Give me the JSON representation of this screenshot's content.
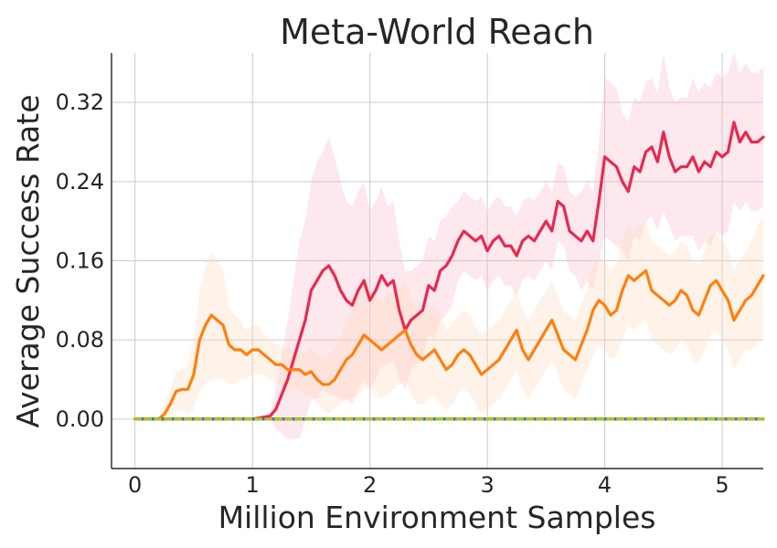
{
  "chart_data": {
    "type": "line",
    "title": "Meta-World Reach",
    "xlabel": "Million Environment Samples",
    "ylabel": "Average Success Rate",
    "xlim": [
      -0.2,
      5.35
    ],
    "ylim": [
      -0.05,
      0.37
    ],
    "xticks": [
      0,
      1,
      2,
      3,
      4,
      5
    ],
    "xtick_labels": [
      "0",
      "1",
      "2",
      "3",
      "4",
      "5"
    ],
    "yticks": [
      0.0,
      0.08,
      0.16,
      0.24,
      0.32
    ],
    "ytick_labels": [
      "0.00",
      "0.08",
      "0.16",
      "0.24",
      "0.32"
    ],
    "grid": true,
    "legend": "none",
    "series": [
      {
        "color": "#e8294f",
        "band_color": "#f7b3c3",
        "x": [
          0,
          1.0,
          1.1,
          1.15,
          1.2,
          1.25,
          1.3,
          1.35,
          1.4,
          1.45,
          1.5,
          1.55,
          1.6,
          1.65,
          1.7,
          1.75,
          1.8,
          1.85,
          1.9,
          1.95,
          2.0,
          2.05,
          2.1,
          2.15,
          2.2,
          2.25,
          2.3,
          2.35,
          2.4,
          2.45,
          2.5,
          2.55,
          2.6,
          2.65,
          2.7,
          2.75,
          2.8,
          2.85,
          2.9,
          2.95,
          3.0,
          3.05,
          3.1,
          3.15,
          3.2,
          3.25,
          3.3,
          3.35,
          3.4,
          3.45,
          3.5,
          3.55,
          3.6,
          3.65,
          3.7,
          3.75,
          3.8,
          3.85,
          3.9,
          3.95,
          4.0,
          4.05,
          4.1,
          4.15,
          4.2,
          4.25,
          4.3,
          4.35,
          4.4,
          4.45,
          4.5,
          4.55,
          4.6,
          4.65,
          4.7,
          4.75,
          4.8,
          4.85,
          4.9,
          4.95,
          5.0,
          5.05,
          5.1,
          5.15,
          5.2,
          5.25,
          5.3,
          5.35
        ],
        "y": [
          0.0,
          0.0,
          0.002,
          0.003,
          0.01,
          0.025,
          0.04,
          0.06,
          0.08,
          0.1,
          0.13,
          0.14,
          0.15,
          0.155,
          0.145,
          0.13,
          0.12,
          0.115,
          0.13,
          0.14,
          0.12,
          0.13,
          0.145,
          0.135,
          0.14,
          0.11,
          0.09,
          0.1,
          0.105,
          0.11,
          0.135,
          0.13,
          0.15,
          0.155,
          0.165,
          0.18,
          0.19,
          0.185,
          0.18,
          0.185,
          0.17,
          0.18,
          0.185,
          0.175,
          0.175,
          0.165,
          0.18,
          0.185,
          0.18,
          0.19,
          0.2,
          0.19,
          0.22,
          0.215,
          0.19,
          0.185,
          0.18,
          0.19,
          0.18,
          0.22,
          0.265,
          0.26,
          0.255,
          0.24,
          0.23,
          0.255,
          0.25,
          0.27,
          0.275,
          0.26,
          0.29,
          0.265,
          0.25,
          0.255,
          0.255,
          0.265,
          0.25,
          0.26,
          0.255,
          0.27,
          0.265,
          0.27,
          0.3,
          0.28,
          0.29,
          0.28,
          0.28,
          0.285
        ],
        "band_halfwidth": [
          0.0,
          0.0,
          0.002,
          0.004,
          0.02,
          0.04,
          0.06,
          0.08,
          0.1,
          0.1,
          0.11,
          0.12,
          0.12,
          0.13,
          0.12,
          0.11,
          0.1,
          0.1,
          0.1,
          0.1,
          0.09,
          0.09,
          0.09,
          0.08,
          0.08,
          0.07,
          0.06,
          0.05,
          0.05,
          0.05,
          0.05,
          0.05,
          0.05,
          0.05,
          0.05,
          0.04,
          0.04,
          0.04,
          0.04,
          0.04,
          0.04,
          0.04,
          0.04,
          0.04,
          0.04,
          0.04,
          0.04,
          0.04,
          0.04,
          0.04,
          0.04,
          0.04,
          0.04,
          0.04,
          0.04,
          0.04,
          0.05,
          0.05,
          0.05,
          0.06,
          0.08,
          0.08,
          0.08,
          0.07,
          0.07,
          0.07,
          0.07,
          0.07,
          0.07,
          0.07,
          0.08,
          0.07,
          0.07,
          0.07,
          0.07,
          0.08,
          0.08,
          0.08,
          0.08,
          0.08,
          0.08,
          0.08,
          0.08,
          0.07,
          0.07,
          0.07,
          0.07,
          0.07
        ]
      },
      {
        "color": "#ff7f0e",
        "band_color": "#ffd8b5",
        "x": [
          0,
          0.2,
          0.25,
          0.3,
          0.35,
          0.4,
          0.45,
          0.5,
          0.55,
          0.6,
          0.65,
          0.7,
          0.75,
          0.8,
          0.85,
          0.9,
          0.95,
          1.0,
          1.05,
          1.1,
          1.15,
          1.2,
          1.25,
          1.3,
          1.35,
          1.4,
          1.45,
          1.5,
          1.55,
          1.6,
          1.65,
          1.7,
          1.75,
          1.8,
          1.85,
          1.9,
          1.95,
          2.0,
          2.05,
          2.1,
          2.15,
          2.2,
          2.25,
          2.3,
          2.35,
          2.4,
          2.45,
          2.5,
          2.55,
          2.6,
          2.65,
          2.7,
          2.75,
          2.8,
          2.85,
          2.9,
          2.95,
          3.0,
          3.05,
          3.1,
          3.15,
          3.2,
          3.25,
          3.3,
          3.35,
          3.4,
          3.45,
          3.5,
          3.55,
          3.6,
          3.65,
          3.7,
          3.75,
          3.8,
          3.85,
          3.9,
          3.95,
          4.0,
          4.05,
          4.1,
          4.15,
          4.2,
          4.25,
          4.3,
          4.35,
          4.4,
          4.45,
          4.5,
          4.55,
          4.6,
          4.65,
          4.7,
          4.75,
          4.8,
          4.85,
          4.9,
          4.95,
          5.0,
          5.05,
          5.1,
          5.15,
          5.2,
          5.25,
          5.3,
          5.35
        ],
        "y": [
          0.0,
          0.0,
          0.005,
          0.015,
          0.028,
          0.03,
          0.03,
          0.045,
          0.08,
          0.095,
          0.105,
          0.1,
          0.095,
          0.075,
          0.07,
          0.07,
          0.065,
          0.07,
          0.07,
          0.065,
          0.06,
          0.055,
          0.055,
          0.05,
          0.05,
          0.05,
          0.045,
          0.048,
          0.04,
          0.035,
          0.035,
          0.04,
          0.05,
          0.06,
          0.065,
          0.075,
          0.085,
          0.08,
          0.075,
          0.07,
          0.075,
          0.08,
          0.085,
          0.09,
          0.075,
          0.065,
          0.06,
          0.065,
          0.07,
          0.06,
          0.05,
          0.055,
          0.065,
          0.07,
          0.065,
          0.055,
          0.045,
          0.05,
          0.055,
          0.06,
          0.07,
          0.08,
          0.09,
          0.07,
          0.06,
          0.07,
          0.08,
          0.09,
          0.1,
          0.085,
          0.07,
          0.065,
          0.06,
          0.075,
          0.09,
          0.11,
          0.12,
          0.115,
          0.105,
          0.11,
          0.13,
          0.145,
          0.14,
          0.145,
          0.15,
          0.13,
          0.125,
          0.12,
          0.115,
          0.12,
          0.13,
          0.125,
          0.11,
          0.105,
          0.12,
          0.135,
          0.14,
          0.13,
          0.12,
          0.1,
          0.11,
          0.12,
          0.125,
          0.135,
          0.145
        ],
        "band_halfwidth": [
          0.0,
          0.0,
          0.01,
          0.015,
          0.02,
          0.02,
          0.025,
          0.035,
          0.05,
          0.06,
          0.065,
          0.06,
          0.055,
          0.04,
          0.035,
          0.03,
          0.025,
          0.025,
          0.025,
          0.02,
          0.02,
          0.02,
          0.02,
          0.02,
          0.02,
          0.02,
          0.02,
          0.025,
          0.025,
          0.025,
          0.03,
          0.03,
          0.035,
          0.04,
          0.045,
          0.05,
          0.055,
          0.05,
          0.05,
          0.05,
          0.05,
          0.05,
          0.05,
          0.05,
          0.05,
          0.05,
          0.045,
          0.045,
          0.045,
          0.045,
          0.04,
          0.04,
          0.04,
          0.04,
          0.04,
          0.04,
          0.04,
          0.04,
          0.04,
          0.04,
          0.04,
          0.04,
          0.04,
          0.04,
          0.04,
          0.04,
          0.04,
          0.04,
          0.04,
          0.04,
          0.04,
          0.04,
          0.04,
          0.04,
          0.04,
          0.045,
          0.045,
          0.045,
          0.045,
          0.045,
          0.05,
          0.05,
          0.05,
          0.05,
          0.05,
          0.05,
          0.05,
          0.05,
          0.05,
          0.05,
          0.05,
          0.05,
          0.05,
          0.05,
          0.05,
          0.05,
          0.05,
          0.05,
          0.05,
          0.05,
          0.05,
          0.05,
          0.055,
          0.06,
          0.06
        ]
      },
      {
        "color": "#2ca02c",
        "x": [
          0,
          5.35
        ],
        "y": [
          0.0,
          0.0
        ]
      },
      {
        "color": "#1f77b4",
        "x": [
          0,
          5.35
        ],
        "y": [
          0.0,
          0.0
        ]
      },
      {
        "color": "#bcbd22",
        "dashed": true,
        "x": [
          0,
          5.35
        ],
        "y": [
          0.0,
          0.0
        ]
      }
    ]
  }
}
